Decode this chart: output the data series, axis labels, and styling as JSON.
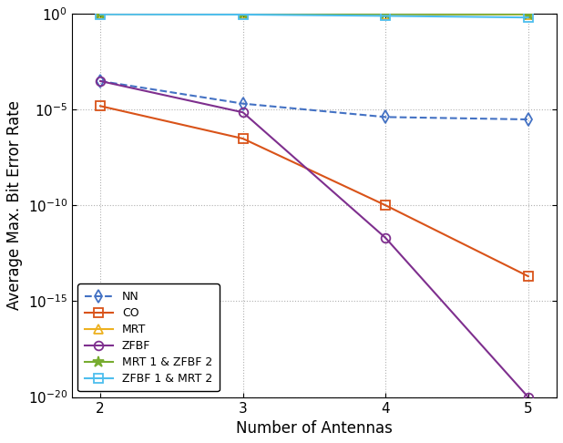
{
  "x": [
    2,
    3,
    4,
    5
  ],
  "series": {
    "NN": {
      "y": [
        0.0003,
        2e-05,
        4e-06,
        3e-06
      ],
      "color": "#4472C4",
      "marker": "d",
      "linestyle": "--",
      "markersize": 7,
      "label": "NN",
      "markerfacecolor": "none"
    },
    "CO": {
      "y": [
        1.5e-05,
        3e-07,
        1e-10,
        2e-14
      ],
      "color": "#D95319",
      "marker": "s",
      "linestyle": "-",
      "markersize": 7,
      "label": "CO",
      "markerfacecolor": "none"
    },
    "MRT": {
      "y": [
        0.97,
        0.95,
        0.92,
        0.91
      ],
      "color": "#EDB120",
      "marker": "^",
      "linestyle": "-",
      "markersize": 7,
      "label": "MRT",
      "markerfacecolor": "none"
    },
    "ZFBF": {
      "y": [
        0.0003,
        7e-06,
        2e-12,
        1e-20
      ],
      "color": "#7E2F8E",
      "marker": "o",
      "linestyle": "-",
      "markersize": 7,
      "label": "ZFBF",
      "markerfacecolor": "none"
    },
    "MRT1_ZFBF2": {
      "y": [
        0.96,
        0.945,
        0.93,
        0.915
      ],
      "color": "#77AC30",
      "marker": "*",
      "linestyle": "-",
      "markersize": 9,
      "label": "MRT 1 & ZFBF 2",
      "markerfacecolor": "none"
    },
    "ZFBF1_MRT2": {
      "y": [
        0.91,
        0.88,
        0.75,
        0.62
      ],
      "color": "#4DBEEE",
      "marker": "s",
      "linestyle": "-",
      "markersize": 7,
      "label": "ZFBF 1 & MRT 2",
      "markerfacecolor": "none"
    }
  },
  "xlabel": "Number of Antennas",
  "ylabel": "Average Max. Bit Error Rate",
  "ylim_exp_min": -20,
  "ylim_exp_max": 0,
  "xlim": [
    1.8,
    5.2
  ],
  "legend_loc": "lower left",
  "legend_fontsize": 9,
  "tick_fontsize": 11,
  "label_fontsize": 12
}
